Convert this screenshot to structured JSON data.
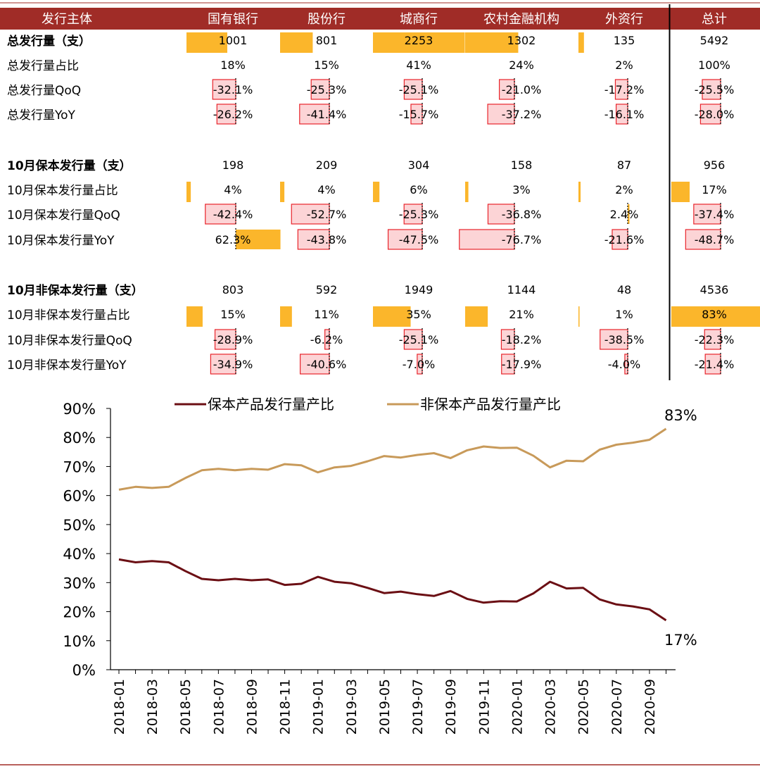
{
  "chart_data": [
    {
      "type": "table",
      "header": [
        "发行主体",
        "国有银行",
        "股份行",
        "城商行",
        "农村金融机构",
        "外资行",
        "总计"
      ],
      "rows": [
        {
          "label": "总发行量（支）",
          "bold": true,
          "kind": "count",
          "values": [
            1001,
            801,
            2253,
            1302,
            135,
            5492
          ],
          "display": [
            "1001",
            "801",
            "2253",
            "1302",
            "135",
            "5492"
          ]
        },
        {
          "label": "总发行量占比",
          "kind": "plain",
          "values": [
            18,
            15,
            41,
            24,
            2,
            100
          ],
          "display": [
            "18%",
            "15%",
            "41%",
            "24%",
            "2%",
            "100%"
          ]
        },
        {
          "label": "总发行量QoQ",
          "kind": "change",
          "values": [
            -32.1,
            -25.3,
            -25.1,
            -21.0,
            -17.2,
            -25.5
          ],
          "display": [
            "-32.1%",
            "-25.3%",
            "-25.1%",
            "-21.0%",
            "-17.2%",
            "-25.5%"
          ]
        },
        {
          "label": "总发行量YoY",
          "kind": "change",
          "values": [
            -26.2,
            -41.4,
            -15.7,
            -37.2,
            -16.1,
            -28.0
          ],
          "display": [
            "-26.2%",
            "-41.4%",
            "-15.7%",
            "-37.2%",
            "-16.1%",
            "-28.0%"
          ]
        },
        {
          "label": "10月保本发行量（支）",
          "bold": true,
          "kind": "plain",
          "values": [
            198,
            209,
            304,
            158,
            87,
            956
          ],
          "display": [
            "198",
            "209",
            "304",
            "158",
            "87",
            "956"
          ]
        },
        {
          "label": "10月保本发行量占比",
          "kind": "share",
          "values": [
            4,
            4,
            6,
            3,
            2,
            17
          ],
          "display": [
            "4%",
            "4%",
            "6%",
            "3%",
            "2%",
            "17%"
          ]
        },
        {
          "label": "10月保本发行量QoQ",
          "kind": "change",
          "values": [
            -42.4,
            -52.7,
            -25.3,
            -36.8,
            2.4,
            -37.4
          ],
          "display": [
            "-42.4%",
            "-52.7%",
            "-25.3%",
            "-36.8%",
            "2.4%",
            "-37.4%"
          ]
        },
        {
          "label": "10月保本发行量YoY",
          "kind": "change",
          "values": [
            62.3,
            -43.8,
            -47.5,
            -76.7,
            -21.6,
            -48.7
          ],
          "display": [
            "62.3%",
            "-43.8%",
            "-47.5%",
            "-76.7%",
            "-21.6%",
            "-48.7%"
          ]
        },
        {
          "label": "10月非保本发行量（支）",
          "bold": true,
          "kind": "plain",
          "values": [
            803,
            592,
            1949,
            1144,
            48,
            4536
          ],
          "display": [
            "803",
            "592",
            "1949",
            "1144",
            "48",
            "4536"
          ]
        },
        {
          "label": "10月非保本发行量占比",
          "kind": "share",
          "values": [
            15,
            11,
            35,
            21,
            1,
            83
          ],
          "display": [
            "15%",
            "11%",
            "35%",
            "21%",
            "1%",
            "83%"
          ]
        },
        {
          "label": "10月非保本发行量QoQ",
          "kind": "change",
          "values": [
            -28.9,
            -6.2,
            -25.1,
            -18.2,
            -38.5,
            -22.3
          ],
          "display": [
            "-28.9%",
            "-6.2%",
            "-25.1%",
            "-18.2%",
            "-38.5%",
            "-22.3%"
          ]
        },
        {
          "label": "10月非保本发行量YoY",
          "kind": "change",
          "values": [
            -34.9,
            -40.6,
            -7.0,
            -17.9,
            -4.0,
            -21.4
          ],
          "display": [
            "-34.9%",
            "-40.6%",
            "-7.0%",
            "-17.9%",
            "-4.0%",
            "-21.4%"
          ]
        }
      ]
    },
    {
      "type": "line",
      "x": [
        "2018-01",
        "2018-02",
        "2018-03",
        "2018-04",
        "2018-05",
        "2018-06",
        "2018-07",
        "2018-08",
        "2018-09",
        "2018-10",
        "2018-11",
        "2018-12",
        "2019-01",
        "2019-02",
        "2019-03",
        "2019-04",
        "2019-05",
        "2019-06",
        "2019-07",
        "2019-08",
        "2019-09",
        "2019-10",
        "2019-11",
        "2019-12",
        "2020-01",
        "2020-02",
        "2020-03",
        "2020-04",
        "2020-05",
        "2020-06",
        "2020-07",
        "2020-08",
        "2020-09",
        "2020-10"
      ],
      "xtick_labels": [
        "2018-01",
        "2018-03",
        "2018-05",
        "2018-07",
        "2018-09",
        "2018-11",
        "2019-01",
        "2019-03",
        "2019-05",
        "2019-07",
        "2019-09",
        "2019-11",
        "2020-01",
        "2020-03",
        "2020-05",
        "2020-07",
        "2020-09"
      ],
      "series": [
        {
          "name": "保本产品发行量产比",
          "color": "#6b0f14",
          "values": [
            38.0,
            37.0,
            37.4,
            37.0,
            34.0,
            31.3,
            30.8,
            31.3,
            30.8,
            31.1,
            29.2,
            29.6,
            32.0,
            30.3,
            29.8,
            28.2,
            26.4,
            26.9,
            26.0,
            25.4,
            27.1,
            24.4,
            23.1,
            23.6,
            23.5,
            26.3,
            30.3,
            28.0,
            28.2,
            24.2,
            22.5,
            21.8,
            20.8,
            17.0
          ]
        },
        {
          "name": "非保本产品发行量产比",
          "color": "#c89a5a",
          "values": [
            62.0,
            63.0,
            62.6,
            63.0,
            66.0,
            68.7,
            69.2,
            68.7,
            69.2,
            68.9,
            70.8,
            70.4,
            68.0,
            69.7,
            70.2,
            71.8,
            73.6,
            73.1,
            74.0,
            74.6,
            72.9,
            75.6,
            76.9,
            76.4,
            76.5,
            73.7,
            69.7,
            72.0,
            71.8,
            75.8,
            77.5,
            78.2,
            79.2,
            83.0
          ]
        }
      ],
      "end_labels": [
        "17%",
        "83%"
      ],
      "ylim": [
        0,
        90
      ],
      "yticks": [
        "0%",
        "10%",
        "20%",
        "30%",
        "40%",
        "50%",
        "60%",
        "70%",
        "80%",
        "90%"
      ],
      "title": "",
      "xlabel": "",
      "ylabel": "",
      "legend_position": "top"
    }
  ],
  "colors": {
    "header_bg": "#a02c27",
    "header_text": "#ffffff",
    "bar_fill": "#fbb62b",
    "neg_fill": "#fcd4d6",
    "neg_stroke": "#e8242b",
    "axis": "#000000"
  }
}
